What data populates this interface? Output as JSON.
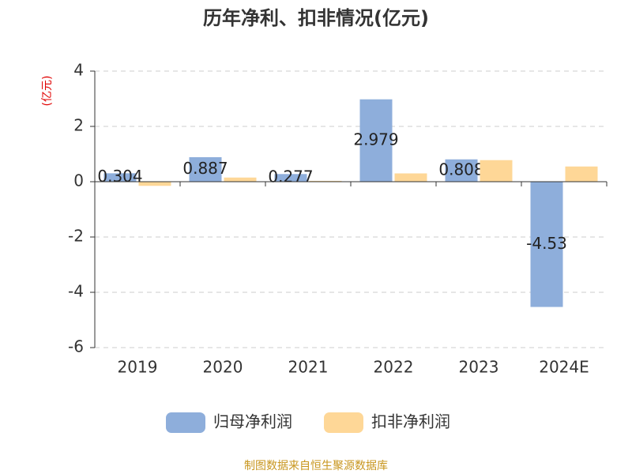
{
  "chart_data": {
    "type": "bar",
    "title": "历年净利、扣非情况(亿元)",
    "y_label": "(亿元)",
    "categories": [
      "2019",
      "2020",
      "2021",
      "2022",
      "2023",
      "2024E"
    ],
    "series": [
      {
        "name": "归母净利润",
        "color": "#8eaedb",
        "values": [
          0.304,
          0.887,
          0.277,
          2.979,
          0.808,
          -4.53
        ]
      },
      {
        "name": "扣非净利润",
        "color": "#fed797",
        "values": [
          -0.15,
          0.15,
          0.03,
          0.3,
          0.78,
          0.55
        ]
      }
    ],
    "ylim": [
      -6,
      4
    ],
    "yticks": [
      -6,
      -4,
      -2,
      0,
      2,
      4
    ],
    "grid": true,
    "source": "制图数据来自恒生聚源数据库"
  }
}
